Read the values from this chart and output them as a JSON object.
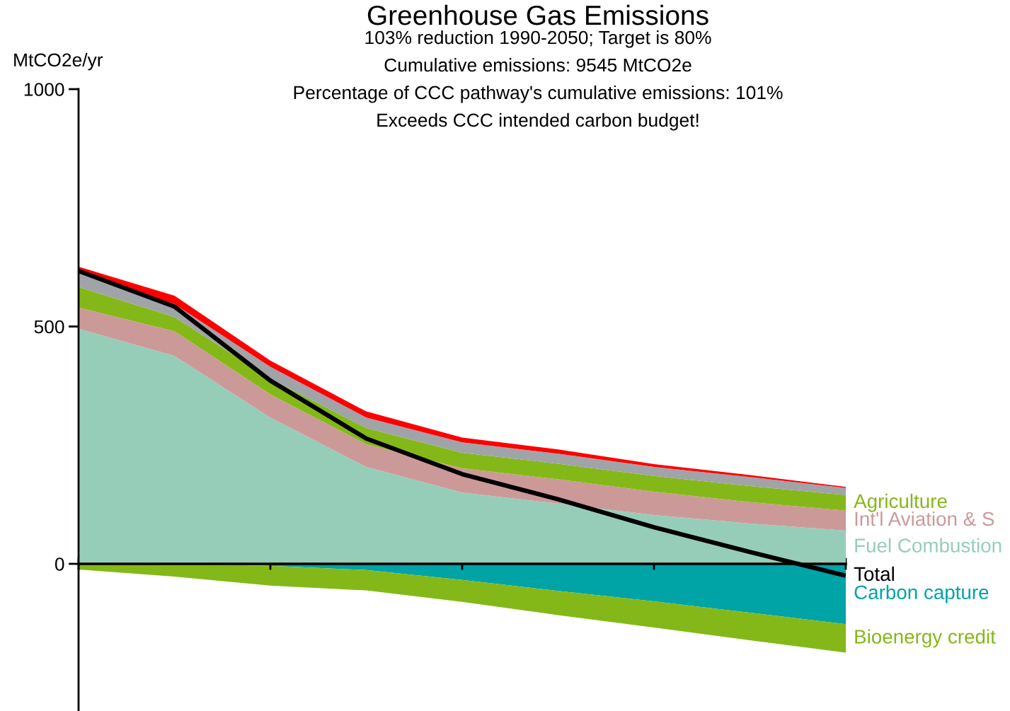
{
  "chart_data": [
    {
      "type": "area",
      "stacked": true,
      "title": "Greenhouse Gas Emissions",
      "subtitle": "103% reduction 1990-2050; Target is 80%\nCumulative emissions: 9545 MtCO2e\nPercentage of CCC pathway's cumulative emissions: 101%\nExceeds CCC intended carbon budget!",
      "ylabel": "MtCO2e/yr",
      "categories": [
        null,
        null,
        null,
        null,
        null,
        null,
        null,
        null,
        null
      ],
      "ylim": [
        -310,
        1000
      ],
      "yticks": [
        0,
        500,
        1000
      ],
      "series": [
        {
          "name": "Fuel Combustion",
          "color": "#96cdb9",
          "values": [
            495,
            438,
            308,
            204,
            150,
            127,
            103,
            85,
            70
          ]
        },
        {
          "name": "Int'l Aviation & S",
          "color": "#cc9999",
          "values": [
            45,
            52,
            49,
            48,
            51,
            51,
            49,
            45,
            42
          ]
        },
        {
          "name": "Agriculture",
          "color": "#84b818",
          "values": [
            43,
            30,
            33,
            34,
            33,
            33,
            33,
            34,
            33
          ]
        },
        {
          "color": "#a0a3a8",
          "values": [
            33,
            27,
            25,
            22,
            22,
            21,
            19,
            19,
            15
          ]
        },
        {
          "color": "#ff0000",
          "values": [
            10,
            18,
            13,
            13,
            10,
            9,
            6,
            4,
            2
          ]
        },
        {
          "name": "Total",
          "type": "line",
          "color": "#000000",
          "values": [
            617,
            542,
            386,
            264,
            189,
            136,
            77,
            25,
            -25
          ]
        }
      ]
    },
    {
      "type": "area",
      "stacked": true,
      "categories": [
        null,
        null,
        null,
        null,
        null,
        null,
        null,
        null,
        null
      ],
      "ylim": [
        -310,
        1000
      ],
      "yticks": [
        0,
        500,
        1000
      ],
      "tick_labels": false,
      "series": [
        {
          "name": "Carbon capture",
          "color": "#00a3a6",
          "values": [
            0,
            0,
            -4,
            -13,
            -34,
            -57,
            -79,
            -103,
            -127
          ]
        },
        {
          "name": "Bioenergy credit",
          "color": "#84b818",
          "values": [
            -12,
            -27,
            -42,
            -43,
            -46,
            -51,
            -55,
            -58,
            -60
          ]
        }
      ]
    }
  ]
}
